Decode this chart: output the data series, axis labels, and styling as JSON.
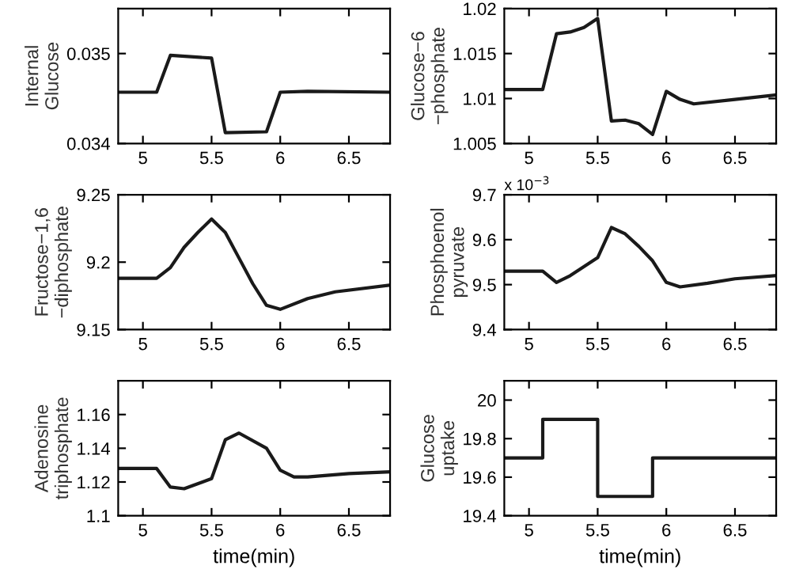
{
  "chart_data": [
    {
      "type": "line",
      "ylabel": "Internal\nGlucose",
      "x": [
        4.82,
        5.1,
        5.2,
        5.5,
        5.6,
        5.9,
        6.0,
        6.2,
        6.8
      ],
      "series": [
        {
          "color": "#1a1a1a",
          "values": [
            0.03457,
            0.03457,
            0.03498,
            0.03495,
            0.03412,
            0.03413,
            0.03457,
            0.03458,
            0.03457
          ]
        }
      ],
      "xlim": [
        4.82,
        6.8
      ],
      "xticks": [
        5,
        5.5,
        6,
        6.5
      ],
      "ylim": [
        0.034,
        0.0355
      ],
      "yticks": [
        0.034,
        0.035
      ],
      "grid": false,
      "legend": false
    },
    {
      "type": "line",
      "ylabel": "Glucose−6\n−phosphate",
      "x": [
        4.82,
        5.1,
        5.2,
        5.3,
        5.4,
        5.5,
        5.6,
        5.7,
        5.8,
        5.9,
        6.0,
        6.1,
        6.2,
        6.5,
        6.8
      ],
      "series": [
        {
          "color": "#1a1a1a",
          "values": [
            1.011,
            1.011,
            1.0172,
            1.0174,
            1.0179,
            1.0189,
            1.0075,
            1.0076,
            1.0072,
            1.006,
            1.0108,
            1.0099,
            1.0094,
            1.0099,
            1.0104
          ]
        }
      ],
      "xlim": [
        4.82,
        6.8
      ],
      "xticks": [
        5,
        5.5,
        6,
        6.5
      ],
      "ylim": [
        1.005,
        1.02
      ],
      "yticks": [
        1.005,
        1.01,
        1.015,
        1.02
      ],
      "grid": false,
      "legend": false
    },
    {
      "type": "line",
      "ylabel": "Fructose−1,6\n−diphosphate",
      "x": [
        4.82,
        5.1,
        5.2,
        5.3,
        5.4,
        5.5,
        5.6,
        5.7,
        5.8,
        5.9,
        6.0,
        6.2,
        6.4,
        6.8
      ],
      "series": [
        {
          "color": "#1a1a1a",
          "values": [
            9.188,
            9.188,
            9.196,
            9.211,
            9.222,
            9.232,
            9.222,
            9.203,
            9.184,
            9.168,
            9.165,
            9.173,
            9.178,
            9.183
          ]
        }
      ],
      "xlim": [
        4.82,
        6.8
      ],
      "xticks": [
        5,
        5.5,
        6,
        6.5
      ],
      "ylim": [
        9.15,
        9.25
      ],
      "yticks": [
        9.15,
        9.2,
        9.25
      ],
      "grid": false,
      "legend": false
    },
    {
      "type": "line",
      "ylabel": "Phosphoenol\npyruvate",
      "annotations": [
        "x 10$^{−3}$"
      ],
      "x": [
        4.82,
        5.1,
        5.2,
        5.3,
        5.5,
        5.6,
        5.7,
        5.8,
        5.9,
        6.0,
        6.1,
        6.3,
        6.5,
        6.8
      ],
      "series": [
        {
          "color": "#1a1a1a",
          "values": [
            9.53,
            9.53,
            9.505,
            9.52,
            9.56,
            9.627,
            9.613,
            9.585,
            9.553,
            9.505,
            9.495,
            9.503,
            9.513,
            9.52
          ]
        }
      ],
      "xlim": [
        4.82,
        6.8
      ],
      "xticks": [
        5,
        5.5,
        6,
        6.5
      ],
      "ylim": [
        9.4,
        9.7
      ],
      "yticks": [
        9.4,
        9.5,
        9.6,
        9.7
      ],
      "grid": false,
      "legend": false
    },
    {
      "type": "line",
      "ylabel": "Adenosine\ntriphosphate",
      "xlabel": "time(min)",
      "x": [
        4.82,
        5.1,
        5.2,
        5.3,
        5.5,
        5.6,
        5.7,
        5.9,
        6.0,
        6.1,
        6.2,
        6.5,
        6.8
      ],
      "series": [
        {
          "color": "#1a1a1a",
          "values": [
            1.128,
            1.128,
            1.117,
            1.116,
            1.122,
            1.145,
            1.149,
            1.14,
            1.127,
            1.123,
            1.123,
            1.125,
            1.126
          ]
        }
      ],
      "xlim": [
        4.82,
        6.8
      ],
      "xticks": [
        5,
        5.5,
        6,
        6.5
      ],
      "ylim": [
        1.1,
        1.18
      ],
      "yticks": [
        1.1,
        1.12,
        1.14,
        1.16
      ],
      "grid": false,
      "legend": false
    },
    {
      "type": "step",
      "ylabel": "Glucose\nuptake",
      "xlabel": "time(min)",
      "x": [
        4.82,
        5.1,
        5.5,
        5.9,
        6.8
      ],
      "series": [
        {
          "color": "#1a1a1a",
          "values": [
            19.7,
            19.9,
            19.5,
            19.7,
            19.7
          ]
        }
      ],
      "xlim": [
        4.82,
        6.8
      ],
      "xticks": [
        5,
        5.5,
        6,
        6.5
      ],
      "ylim": [
        19.4,
        20.1
      ],
      "yticks": [
        19.4,
        19.6,
        19.8,
        20
      ],
      "grid": false,
      "legend": false
    }
  ]
}
